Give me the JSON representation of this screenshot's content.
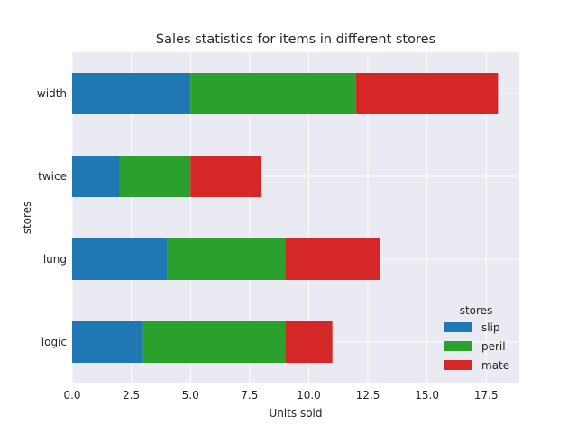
{
  "chart_data": {
    "type": "bar",
    "orientation": "horizontal",
    "stacked": true,
    "title": "Sales statistics for items in different stores",
    "xlabel": "Units sold",
    "ylabel": "stores",
    "categories": [
      "logic",
      "lung",
      "twice",
      "width"
    ],
    "series": [
      {
        "name": "slip",
        "values": [
          3,
          4,
          2,
          5
        ],
        "color": "#1f77b4"
      },
      {
        "name": "peril",
        "values": [
          6,
          5,
          3,
          7
        ],
        "color": "#2ca02c"
      },
      {
        "name": "mate",
        "values": [
          2,
          4,
          3,
          6
        ],
        "color": "#d62728"
      }
    ],
    "xlim": [
      0,
      18.9
    ],
    "xticks": [
      0,
      2.5,
      5,
      7.5,
      10,
      12.5,
      15,
      17.5
    ],
    "xtick_labels": [
      "0.0",
      "2.5",
      "5.0",
      "7.5",
      "10.0",
      "12.5",
      "15.0",
      "17.5"
    ],
    "grid": true,
    "background_color": "#eaeaf2",
    "legend": {
      "title": "stores",
      "position": "lower-right"
    }
  }
}
